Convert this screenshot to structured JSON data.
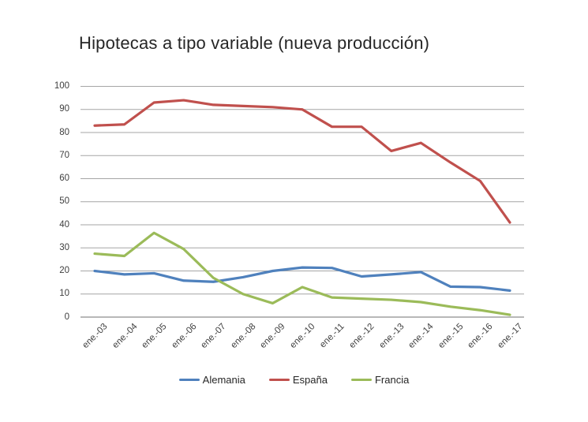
{
  "chart_data": {
    "type": "line",
    "title": "Hipotecas a tipo variable (nueva producción)",
    "categories": [
      "ene.-03",
      "ene.-04",
      "ene.-05",
      "ene.-06",
      "ene.-07",
      "ene.-08",
      "ene.-09",
      "ene.-10",
      "ene.-11",
      "ene.-12",
      "ene.-13",
      "ene.-14",
      "ene.-15",
      "ene.-16",
      "ene.-17"
    ],
    "series": [
      {
        "name": "Alemania",
        "color": "#4F81BD",
        "values": [
          20,
          18.5,
          19,
          15.8,
          15.3,
          17.3,
          20,
          21.5,
          21.3,
          17.6,
          18.5,
          19.5,
          13.2,
          13,
          11.5
        ]
      },
      {
        "name": "España",
        "color": "#C0504D",
        "values": [
          83,
          83.5,
          93,
          94,
          92,
          91.5,
          91,
          90,
          82.5,
          82.5,
          72,
          75.5,
          67,
          59,
          41
        ]
      },
      {
        "name": "Francia",
        "color": "#9BBB59",
        "values": [
          27.5,
          26.5,
          36.5,
          29.5,
          17,
          10,
          6,
          13,
          8.5,
          8,
          7.5,
          6.5,
          4.5,
          3,
          1
        ]
      }
    ],
    "xlabel": "",
    "ylabel": "",
    "ylim": [
      0,
      100
    ],
    "yticks": [
      0,
      10,
      20,
      30,
      40,
      50,
      60,
      70,
      80,
      90,
      100
    ],
    "grid": true,
    "legend_position": "bottom"
  },
  "colors": {
    "background": "#ffffff",
    "gridline": "#A6A6A6",
    "axis_line": "#8E8E8E",
    "tick_text": "#404040",
    "title_text": "#262626"
  }
}
